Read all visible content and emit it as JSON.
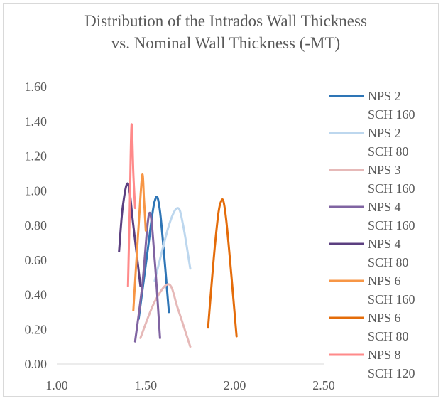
{
  "chart_data": {
    "type": "scatter",
    "title_lines": [
      "Distribution of the Intrados Wall Thickness",
      "vs. Nominal Wall Thickness (-MT)"
    ],
    "xlabel": "",
    "ylabel": "",
    "xlim": [
      1.0,
      2.5
    ],
    "ylim": [
      0.0,
      1.6
    ],
    "x_ticks": [
      "1.00",
      "1.50",
      "2.00",
      "2.50"
    ],
    "y_ticks": [
      "0.00",
      "0.20",
      "0.40",
      "0.60",
      "0.80",
      "1.00",
      "1.20",
      "1.40",
      "1.60"
    ],
    "grid": false,
    "smooth_lines": true,
    "legend_position": "right",
    "series": [
      {
        "name": "NPS 2 SCH 160",
        "label_lines": [
          "NPS 2",
          "SCH 160"
        ],
        "color": "#2e75b6",
        "points": [
          [
            1.46,
            0.26
          ],
          [
            1.51,
            0.65
          ],
          [
            1.55,
            0.94
          ],
          [
            1.58,
            0.88
          ],
          [
            1.63,
            0.3
          ]
        ]
      },
      {
        "name": "NPS 2 SCH 80",
        "label_lines": [
          "NPS 2",
          "SCH 80"
        ],
        "color": "#bdd7ee",
        "points": [
          [
            1.55,
            0.48
          ],
          [
            1.63,
            0.8
          ],
          [
            1.68,
            0.9
          ],
          [
            1.71,
            0.8
          ],
          [
            1.75,
            0.55
          ]
        ]
      },
      {
        "name": "NPS 3 SCH 160",
        "label_lines": [
          "NPS 3",
          "SCH 160"
        ],
        "color": "#e6b9b8",
        "points": [
          [
            1.47,
            0.15
          ],
          [
            1.55,
            0.36
          ],
          [
            1.63,
            0.46
          ],
          [
            1.68,
            0.32
          ],
          [
            1.75,
            0.1
          ]
        ]
      },
      {
        "name": "NPS 4 SCH 160",
        "label_lines": [
          "NPS 4",
          "SCH 160"
        ],
        "color": "#8064a2",
        "points": [
          [
            1.44,
            0.13
          ],
          [
            1.48,
            0.45
          ],
          [
            1.52,
            0.87
          ],
          [
            1.55,
            0.6
          ],
          [
            1.58,
            0.15
          ]
        ]
      },
      {
        "name": "NPS 4 SCH 80",
        "label_lines": [
          "NPS 4",
          "SCH 80"
        ],
        "color": "#5b3f80",
        "points": [
          [
            1.35,
            0.65
          ],
          [
            1.37,
            0.9
          ],
          [
            1.4,
            1.04
          ],
          [
            1.43,
            0.8
          ],
          [
            1.47,
            0.45
          ]
        ]
      },
      {
        "name": "NPS 6 SCH 160",
        "label_lines": [
          "NPS 6",
          "SCH 160"
        ],
        "color": "#f79646",
        "points": [
          [
            1.43,
            0.31
          ],
          [
            1.46,
            0.8
          ],
          [
            1.48,
            1.09
          ],
          [
            1.49,
            0.95
          ],
          [
            1.5,
            0.77
          ]
        ]
      },
      {
        "name": "NPS 6 SCH 80",
        "label_lines": [
          "NPS 6",
          "SCH 80"
        ],
        "color": "#e46c0a",
        "points": [
          [
            1.85,
            0.21
          ],
          [
            1.89,
            0.7
          ],
          [
            1.92,
            0.93
          ],
          [
            1.95,
            0.85
          ],
          [
            2.01,
            0.16
          ]
        ]
      },
      {
        "name": "NPS 8 SCH 120",
        "label_lines": [
          "NPS 8",
          "SCH 120"
        ],
        "color": "#ff8a8a",
        "points": [
          [
            1.4,
            0.45
          ],
          [
            1.41,
            0.9
          ],
          [
            1.42,
            1.38
          ],
          [
            1.43,
            1.1
          ],
          [
            1.44,
            0.9
          ]
        ]
      }
    ]
  }
}
